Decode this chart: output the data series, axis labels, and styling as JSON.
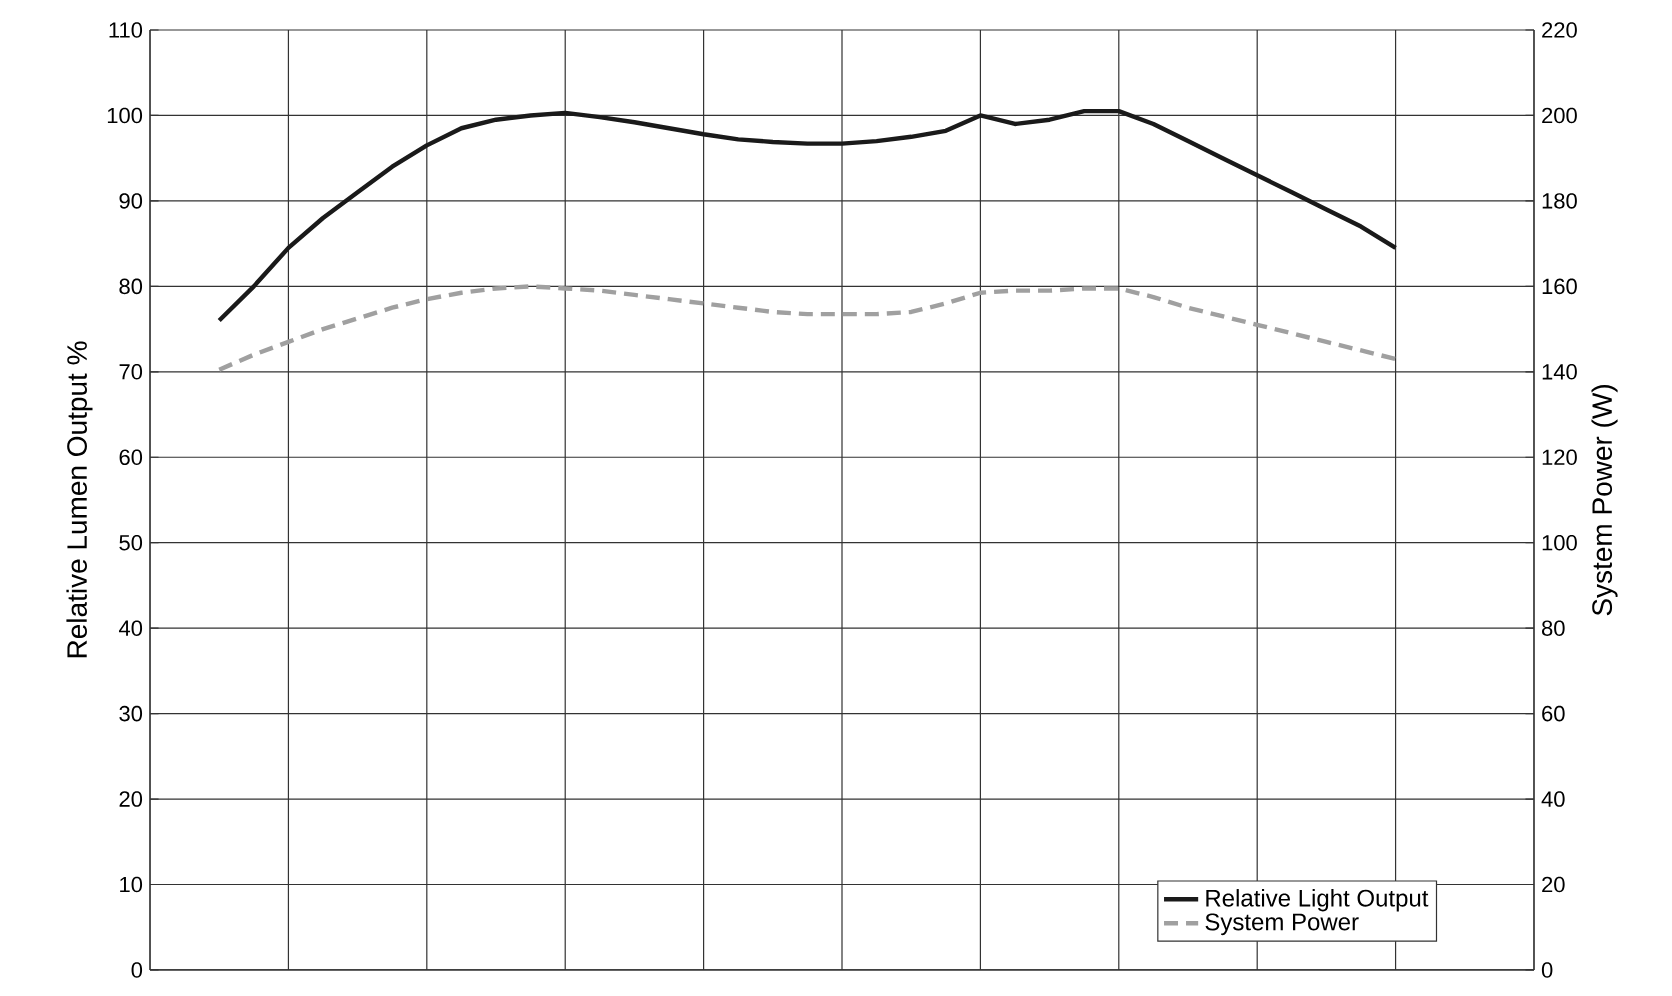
{
  "chart_data": {
    "type": "line",
    "ylabel": "Relative Lumen Output %",
    "y2label": "System Power (W)",
    "categories": [
      null,
      null,
      null,
      null,
      null,
      null,
      null,
      null,
      null,
      null,
      null,
      null,
      null,
      null,
      null,
      null,
      null,
      null,
      null,
      null,
      null,
      null,
      null,
      null,
      null,
      null,
      null,
      null,
      null,
      null,
      null,
      null,
      null,
      null,
      null,
      null,
      null,
      null,
      null,
      null,
      null
    ],
    "series": [
      {
        "name": "Relative Light Output",
        "color": "#1a1a1a",
        "line_style": "solid",
        "values": [
          null,
          null,
          76,
          80,
          84.5,
          88,
          91,
          94,
          96.5,
          98.5,
          99.5,
          100,
          100.3,
          99.8,
          99.2,
          98.5,
          97.8,
          97.2,
          96.9,
          96.7,
          96.7,
          97,
          97.5,
          98.2,
          100,
          99,
          99.5,
          100.5,
          100.5,
          99,
          97,
          95,
          93,
          91,
          89,
          87,
          84.5,
          null,
          null,
          null,
          null
        ]
      },
      {
        "name": "System Power",
        "color": "#a0a0a0",
        "line_style": "dashed",
        "axis": "y2",
        "values": [
          null,
          null,
          140.5,
          144,
          147,
          150,
          152.5,
          155,
          157,
          158.5,
          159.5,
          160,
          159.5,
          159,
          158,
          157,
          156,
          155,
          154,
          153.5,
          153.5,
          153.5,
          154,
          156,
          158.5,
          159,
          159,
          159.5,
          159.5,
          157.5,
          155,
          153,
          151,
          149,
          147,
          145,
          143,
          null,
          null,
          null,
          null
        ]
      }
    ],
    "ylim": [
      0,
      110
    ],
    "yticks": [
      0,
      10,
      20,
      30,
      40,
      50,
      60,
      70,
      80,
      90,
      100,
      110
    ],
    "y2lim": [
      0,
      220
    ],
    "y2ticks": [
      0,
      20,
      40,
      60,
      80,
      100,
      120,
      140,
      160,
      180,
      200,
      220
    ],
    "grid": true,
    "legend": "bottom right"
  }
}
